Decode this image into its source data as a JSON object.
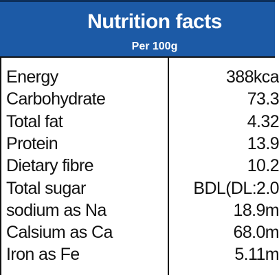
{
  "header": {
    "title": "Nutrition facts",
    "subtitle": "Per 100g"
  },
  "table": {
    "rows": [
      [
        "Energy",
        "388kca"
      ],
      [
        "Carbohydrate",
        "73.3"
      ],
      [
        "Total fat",
        "4.32"
      ],
      [
        "Protein",
        "13.9"
      ],
      [
        "Dietary fibre",
        "10.2"
      ],
      [
        "Total sugar",
        "BDL(DL:2.0"
      ],
      [
        "sodium as Na",
        "18.9m"
      ],
      [
        "Calsium as Ca",
        "68.0m"
      ],
      [
        "Iron as Fe",
        "5.11m"
      ]
    ]
  }
}
